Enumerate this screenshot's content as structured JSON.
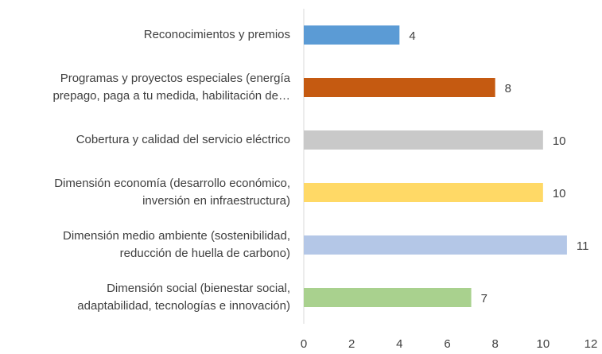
{
  "chart_data": {
    "type": "barh",
    "categories": [
      "Reconocimientos y premios",
      "Programas y proyectos especiales (energía\nprepago, paga a tu medida, habilitación de…",
      "Cobertura y calidad del servicio eléctrico",
      "Dimensión economía (desarrollo económico,\ninversión en infraestructura)",
      "Dimensión medio ambiente (sostenibilidad,\nreducción de huella de carbono)",
      "Dimensión social (bienestar social,\nadaptabilidad, tecnologías e innovación)"
    ],
    "values": [
      4,
      8,
      10,
      10,
      11,
      7
    ],
    "colors": [
      "#5b9bd5",
      "#c55a11",
      "#c9c9c9",
      "#ffd966",
      "#b4c7e7",
      "#a9d18e"
    ],
    "xlim": [
      0,
      12
    ],
    "xticks": [
      0,
      2,
      4,
      6,
      8,
      10,
      12
    ],
    "grid": false
  }
}
